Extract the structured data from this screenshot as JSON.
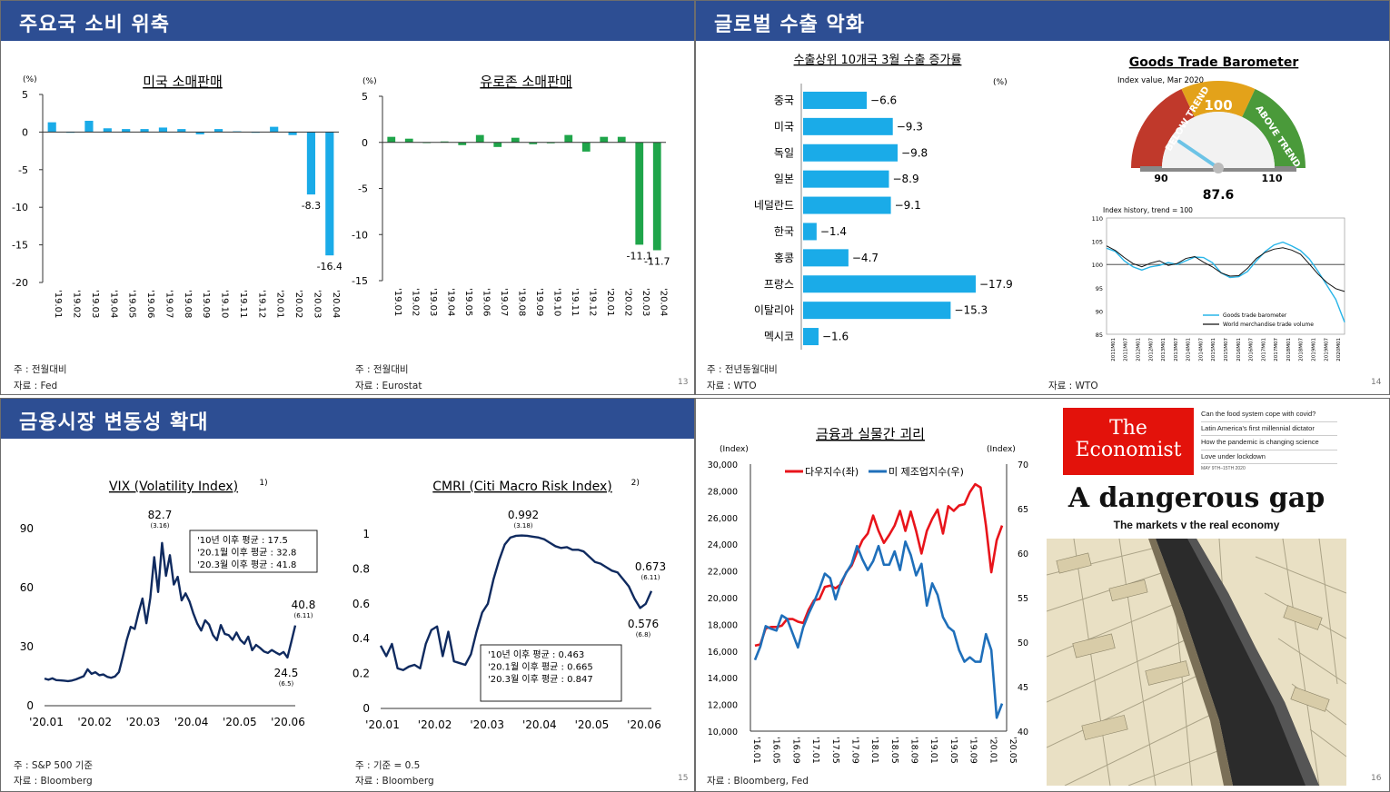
{
  "p13": {
    "title": "주요국 소비 위축",
    "page": "13",
    "left_note": "주 : 전월대비",
    "left_source": "자료 : Fed",
    "right_note": "주 : 전월대비",
    "right_source": "자료 : Eurostat"
  },
  "p14": {
    "title": "글로벌 수출 악화",
    "page": "14",
    "note": "주 : 전년동월대비",
    "source_left": "자료 : WTO",
    "source_right": "자료 : WTO",
    "gauge": {
      "title": "Goods Trade Barometer",
      "subtitle": "Index value, Mar 2020",
      "label_below": "BELOW TREND",
      "label_100": "100",
      "label_above": "ABOVE TREND",
      "tick_90": "90",
      "tick_110": "110",
      "value": 87.6,
      "value_label": "87.6",
      "history_title": "Index history, trend = 100",
      "legend_1": "Goods trade barometer",
      "legend_2": "World merchandise trade volume"
    }
  },
  "p15": {
    "title": "금융시장 변동성 확대",
    "page": "15",
    "left_note": "주 : S&P 500 기준",
    "left_source": "자료 : Bloomberg",
    "right_note": "주 : 기준 = 0.5",
    "right_source": "자료 : Bloomberg",
    "vix_box": [
      "'10년 이후 평균 : 17.5",
      "'20.1월 이후 평균 : 32.8",
      "'20.3월 이후 평균 : 41.8"
    ],
    "cmri_box": [
      "'10년 이후 평균 : 0.463",
      "'20.1월 이후 평균 : 0.665",
      "'20.3월 이후 평균 : 0.847"
    ]
  },
  "p16": {
    "title": "금융과 실물간 괴리",
    "page": "16",
    "source": "자료 : Bloomberg, Fed",
    "cover": {
      "logo_line1": "The",
      "logo_line2": "Economist",
      "teasers": [
        "Can the food system cope with covid?",
        "Latin America's first millennial dictator",
        "How the pandemic is changing science",
        "Love under lockdown"
      ],
      "date": "MAY 9TH–15TH 2020",
      "headline": "A dangerous gap",
      "subhead": "The markets v the real economy"
    }
  },
  "colors": {
    "header": "#2d4e93",
    "us_bar": "#1aabe8",
    "eu_bar": "#1fa54a",
    "export_bar": "#1aabe8",
    "navy_line": "#0f2a5f",
    "dow": "#e8141b",
    "ism": "#1f6fba",
    "baro_line": "#29b5e8"
  },
  "chart_data": [
    {
      "id": "us_retail",
      "type": "bar",
      "title": "미국 소매판매",
      "unit": "(%)",
      "categories": [
        "'19.01",
        "'19.02",
        "'19.03",
        "'19.04",
        "'19.05",
        "'19.06",
        "'19.07",
        "'19.08",
        "'19.09",
        "'19.10",
        "'19.11",
        "'19.12",
        "'20.01",
        "'20.02",
        "'20.03",
        "'20.04"
      ],
      "values": [
        1.3,
        0.0,
        1.5,
        0.5,
        0.4,
        0.4,
        0.6,
        0.4,
        -0.3,
        0.4,
        0.1,
        0.0,
        0.7,
        -0.4,
        -8.3,
        -16.4
      ],
      "value_labels": {
        "14": "-8.3",
        "15": "-16.4"
      },
      "ylim": [
        -20,
        5
      ],
      "yticks": [
        5,
        0,
        -5,
        -10,
        -15,
        -20
      ]
    },
    {
      "id": "eu_retail",
      "type": "bar",
      "title": "유로존 소매판매",
      "unit": "(%)",
      "categories": [
        "'19.01",
        "'19.02",
        "'19.03",
        "'19.04",
        "'19.05",
        "'19.06",
        "'19.07",
        "'19.08",
        "'19.09",
        "'19.10",
        "'19.11",
        "'19.12",
        "'20.01",
        "'20.02",
        "'20.03",
        "'20.04"
      ],
      "values": [
        0.6,
        0.4,
        0.0,
        0.1,
        -0.3,
        0.8,
        -0.5,
        0.5,
        -0.2,
        -0.1,
        0.8,
        -1.0,
        0.6,
        0.6,
        -11.1,
        -11.7
      ],
      "value_labels": {
        "14": "-11.1",
        "15": "-11.7"
      },
      "ylim": [
        -15,
        5
      ],
      "yticks": [
        5,
        0,
        -5,
        -10,
        -15
      ]
    },
    {
      "id": "top10_exports",
      "type": "bar",
      "orientation": "horizontal",
      "title": "수출상위 10개국 3월 수출 증가률",
      "unit": "(%)",
      "categories": [
        "중국",
        "미국",
        "독일",
        "일본",
        "네덜란드",
        "한국",
        "홍콩",
        "프랑스",
        "이탈리아",
        "멕시코"
      ],
      "values": [
        -6.6,
        -9.3,
        -9.8,
        -8.9,
        -9.1,
        -1.4,
        -4.7,
        -17.9,
        -15.3,
        -1.6
      ],
      "value_labels": [
        "−6.6",
        "−9.3",
        "−9.8",
        "−8.9",
        "−9.1",
        "−1.4",
        "−4.7",
        "−17.9",
        "−15.3",
        "−1.6"
      ]
    },
    {
      "id": "trade_history",
      "type": "line",
      "title": "Index history, trend = 100",
      "ylim": [
        85,
        110
      ],
      "yticks": [
        "110",
        "105",
        "100",
        "95",
        "90",
        "85"
      ],
      "x_labels": [
        "2011M01",
        "2011M07",
        "2012M01",
        "2012M07",
        "2013M01",
        "2013M07",
        "2014M01",
        "2014M07",
        "2015M01",
        "2015M07",
        "2016M01",
        "2016M07",
        "2017M01",
        "2017M07",
        "2018M01",
        "2018M07",
        "2019M01",
        "2019M07",
        "2020M01"
      ],
      "series": [
        {
          "name": "Goods trade barometer",
          "values": [
            103.5,
            102.8,
            100.8,
            99.5,
            98.8,
            99.5,
            99.8,
            100.4,
            100.0,
            100.8,
            101.6,
            101.5,
            100.4,
            98.2,
            97.2,
            97.4,
            98.5,
            100.8,
            102.8,
            104.2,
            104.8,
            104.0,
            103.0,
            101.2,
            98.5,
            95.5,
            92.5,
            87.6
          ]
        },
        {
          "name": "World merchandise trade volume",
          "values": [
            104.0,
            103.0,
            101.5,
            100.2,
            99.5,
            100.3,
            100.8,
            99.8,
            100.2,
            101.3,
            101.7,
            100.5,
            99.5,
            98.2,
            97.5,
            97.6,
            99.2,
            101.3,
            102.6,
            103.3,
            103.6,
            103.1,
            102.2,
            100.1,
            97.9,
            96.1,
            94.8,
            94.2
          ]
        }
      ]
    },
    {
      "id": "vix",
      "type": "line",
      "title": "VIX (Volatility Index)",
      "title_sup": "1)",
      "x_labels": [
        "'20.01",
        "'20.02",
        "'20.03",
        "'20.04",
        "'20.05",
        "'20.06"
      ],
      "ylim": [
        0,
        90
      ],
      "yticks": [
        0,
        30,
        60,
        90
      ],
      "values": [
        13.8,
        13.2,
        13.9,
        13.0,
        12.9,
        12.7,
        12.5,
        12.8,
        13.4,
        14.2,
        15.0,
        18.5,
        16.2,
        17.0,
        15.5,
        15.9,
        14.7,
        14.2,
        14.9,
        17.1,
        25.0,
        33.5,
        40.1,
        39.0,
        47.3,
        54.5,
        41.9,
        54.8,
        75.5,
        57.8,
        82.7,
        66.0,
        76.5,
        61.6,
        65.5,
        53.5,
        57.1,
        53.0,
        46.8,
        41.7,
        38.2,
        43.4,
        41.2,
        35.9,
        33.3,
        41.0,
        36.5,
        35.9,
        33.5,
        37.2,
        33.4,
        31.5,
        35.1,
        28.2,
        30.9,
        29.4,
        27.6,
        26.8,
        28.3,
        27.1,
        26.0,
        27.3,
        24.5,
        32.5,
        40.8
      ],
      "annotations": [
        {
          "label": "82.7",
          "note": "(3.16)"
        },
        {
          "label": "40.8",
          "note": "(6.11)"
        },
        {
          "label": "24.5",
          "note": "(6.5)"
        }
      ]
    },
    {
      "id": "cmri",
      "type": "line",
      "title": "CMRI (Citi Macro Risk Index)",
      "title_sup": "2)",
      "x_labels": [
        "'20.01",
        "'20.02",
        "'20.03",
        "'20.04",
        "'20.05",
        "'20.06"
      ],
      "ylim": [
        0,
        1
      ],
      "yticks": [
        "0",
        "0.2",
        "0.4",
        "0.6",
        "0.8",
        "1"
      ],
      "values": [
        0.36,
        0.3,
        0.37,
        0.23,
        0.22,
        0.24,
        0.25,
        0.23,
        0.37,
        0.45,
        0.47,
        0.3,
        0.44,
        0.27,
        0.26,
        0.25,
        0.31,
        0.44,
        0.55,
        0.6,
        0.74,
        0.85,
        0.94,
        0.98,
        0.99,
        0.992,
        0.99,
        0.985,
        0.98,
        0.97,
        0.95,
        0.93,
        0.92,
        0.925,
        0.91,
        0.91,
        0.9,
        0.87,
        0.84,
        0.83,
        0.81,
        0.79,
        0.78,
        0.74,
        0.7,
        0.63,
        0.576,
        0.6,
        0.673
      ],
      "annotations": [
        {
          "label": "0.992",
          "note": "(3.18)"
        },
        {
          "label": "0.673",
          "note": "(6.11)"
        },
        {
          "label": "0.576",
          "note": "(6.8)"
        }
      ]
    },
    {
      "id": "dow_vs_ism",
      "type": "line",
      "title": "금융과 실물간 괴리",
      "y_left_unit": "(Index)",
      "y_right_unit": "(Index)",
      "x_labels": [
        "'16.01",
        "'16.05",
        "'16.09",
        "'17.01",
        "'17.05",
        "'17.09",
        "'18.01",
        "'18.05",
        "'18.09",
        "'19.01",
        "'19.05",
        "'19.09",
        "'20.01",
        "'20.05"
      ],
      "ylim_left": [
        10000,
        30000
      ],
      "yticks_left": [
        "10,000",
        "12,000",
        "14,000",
        "16,000",
        "18,000",
        "20,000",
        "22,000",
        "24,000",
        "26,000",
        "28,000",
        "30,000"
      ],
      "ylim_right": [
        40,
        70
      ],
      "yticks_right": [
        "40",
        "45",
        "50",
        "55",
        "60",
        "65",
        "70"
      ],
      "series": [
        {
          "name": "다우지수(좌)",
          "axis": "left",
          "values": [
            16400,
            16500,
            17700,
            17800,
            17800,
            17900,
            18400,
            18400,
            18200,
            18100,
            19100,
            19800,
            19900,
            20800,
            20900,
            20700,
            21000,
            21900,
            22400,
            23400,
            24300,
            24800,
            26150,
            25000,
            24100,
            24700,
            25400,
            26500,
            25000,
            26450,
            25000,
            23300,
            25000,
            25900,
            26600,
            24800,
            26850,
            26500,
            26900,
            27000,
            27900,
            28500,
            28250,
            25400,
            21900,
            24300,
            25400
          ]
        },
        {
          "name": "미 제조업지수(우)",
          "axis": "right",
          "values": [
            48.0,
            49.5,
            51.8,
            51.5,
            51.3,
            53.0,
            52.6,
            51.0,
            49.4,
            51.7,
            53.2,
            54.5,
            56.0,
            57.7,
            57.2,
            54.8,
            56.7,
            57.8,
            58.8,
            60.8,
            59.3,
            58.1,
            59.1,
            60.8,
            58.7,
            58.7,
            60.2,
            58.1,
            61.3,
            59.8,
            57.5,
            58.8,
            54.1,
            56.6,
            55.3,
            52.8,
            51.7,
            51.2,
            49.1,
            47.8,
            48.3,
            47.8,
            47.8,
            50.9,
            49.1,
            41.5,
            43.1
          ]
        }
      ]
    }
  ]
}
